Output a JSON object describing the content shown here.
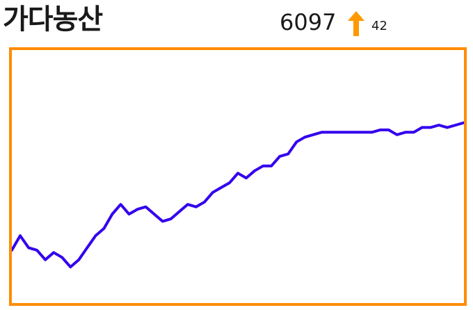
{
  "header": {
    "title": "가다농산",
    "price": "6097",
    "change": "42",
    "direction_icon": "up-arrow-icon",
    "direction_color": "#ff9900"
  },
  "colors": {
    "frame": "#ff8c00",
    "line": "#3300ee"
  },
  "chart_data": {
    "type": "line",
    "title": "",
    "xlabel": "",
    "ylabel": "",
    "ylim": [
      0,
      100
    ],
    "grid": false,
    "series": [
      {
        "values": [
          22,
          28,
          23,
          22,
          18,
          21,
          19,
          15,
          18,
          23,
          28,
          31,
          37,
          41,
          37,
          39,
          40,
          37,
          34,
          35,
          38,
          41,
          40,
          42,
          46,
          48,
          50,
          54,
          52,
          55,
          57,
          57,
          61,
          62,
          67,
          69,
          70,
          71,
          71,
          71,
          71,
          71,
          71,
          71,
          72,
          72,
          70,
          71,
          71,
          73,
          73,
          74,
          73,
          74,
          75
        ]
      }
    ]
  }
}
